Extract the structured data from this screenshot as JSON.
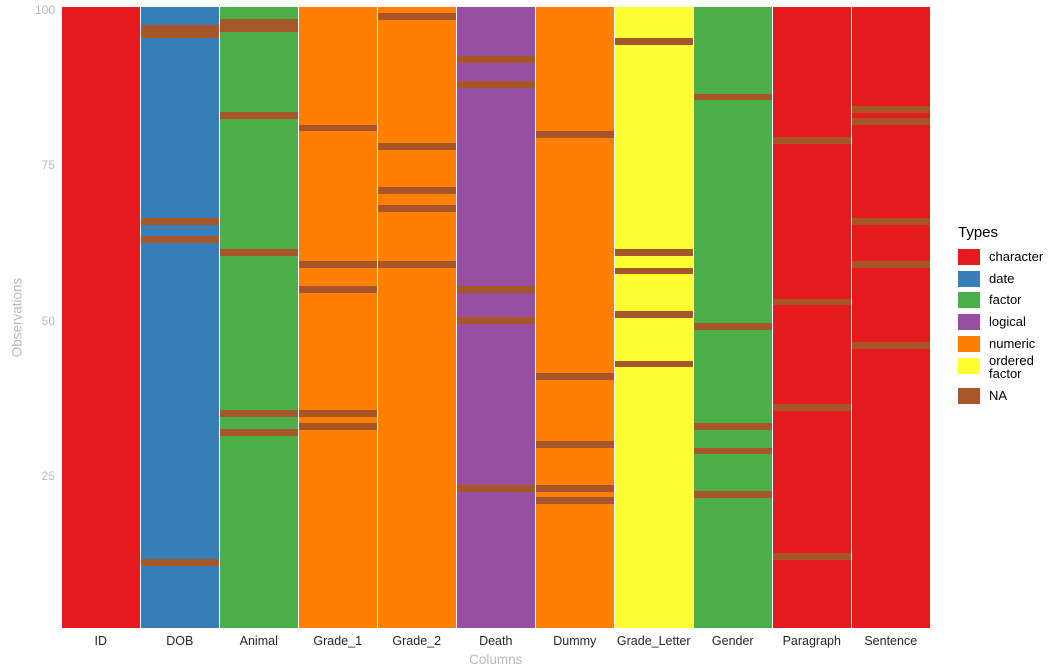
{
  "figure": {
    "background": "#ffffff",
    "axis_text_color": "#b9b9b9",
    "column_label_color": "#262626"
  },
  "chart_data": {
    "type": "heatmap",
    "title": "",
    "xlabel": "Columns",
    "ylabel": "Observations",
    "n_observations": 100,
    "y_ticks": [
      100,
      75,
      50,
      25
    ],
    "grid": false,
    "legend_title": "Types",
    "legend_position": "right",
    "type_colors": {
      "character": "#E41A1C",
      "date": "#377EB8",
      "factor": "#4DAF4A",
      "logical": "#984EA3",
      "numeric": "#FF7F00",
      "ordered factor": "#FFFF33",
      "NA": "#A65628"
    },
    "legend_entries": [
      "character",
      "date",
      "factor",
      "logical",
      "numeric",
      "ordered factor",
      "NA"
    ],
    "columns": [
      {
        "name": "ID",
        "type": "character",
        "na_rows": []
      },
      {
        "name": "DOB",
        "type": "date",
        "na_rows": [
          97,
          96,
          66,
          63,
          11
        ]
      },
      {
        "name": "Animal",
        "type": "factor",
        "na_rows": [
          98,
          97,
          83,
          61,
          35,
          32
        ]
      },
      {
        "name": "Grade_1",
        "type": "numeric",
        "na_rows": [
          81,
          59,
          55,
          35,
          33
        ]
      },
      {
        "name": "Grade_2",
        "type": "numeric",
        "na_rows": [
          99,
          78,
          71,
          68,
          59
        ]
      },
      {
        "name": "Death",
        "type": "logical",
        "na_rows": [
          92,
          88,
          55,
          50,
          23
        ]
      },
      {
        "name": "Dummy",
        "type": "numeric",
        "na_rows": [
          80,
          41,
          30,
          23,
          21
        ]
      },
      {
        "name": "Grade_Letter",
        "type": "ordered factor",
        "na_rows": [
          95,
          61,
          58,
          51,
          43
        ]
      },
      {
        "name": "Gender",
        "type": "factor",
        "na_rows": [
          86,
          49,
          33,
          29,
          22
        ]
      },
      {
        "name": "Paragraph",
        "type": "character",
        "na_rows": [
          79,
          53,
          36,
          12
        ]
      },
      {
        "name": "Sentence",
        "type": "character",
        "na_rows": [
          84,
          82,
          66,
          59,
          46
        ]
      }
    ]
  }
}
